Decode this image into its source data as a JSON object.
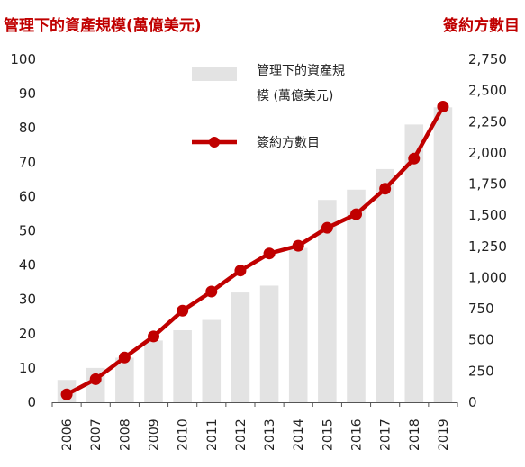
{
  "titles": {
    "left": "管理下的資產規模(萬億美元)",
    "right": "簽約方數目"
  },
  "colors": {
    "title": "#c00000",
    "line": "#c00000",
    "bar": "#e3e3e3"
  },
  "chart_data": {
    "type": "bar+line",
    "categories": [
      "2006",
      "2007",
      "2008",
      "2009",
      "2010",
      "2011",
      "2012",
      "2013",
      "2014",
      "2015",
      "2016",
      "2017",
      "2018",
      "2019"
    ],
    "series": [
      {
        "name": "管理下的資產規模 (萬億美元)",
        "type": "bar",
        "axis": "left",
        "values": [
          6.5,
          10,
          13,
          18,
          21,
          24,
          32,
          34,
          45,
          59,
          62,
          68,
          81,
          86
        ]
      },
      {
        "name": "簽約方數目",
        "type": "line",
        "axis": "right",
        "values": [
          63,
          185,
          359,
          528,
          734,
          888,
          1056,
          1193,
          1255,
          1399,
          1508,
          1712,
          1954,
          2371
        ]
      }
    ],
    "left_axis": {
      "ylim": [
        0,
        100
      ],
      "ticks": [
        "0",
        "10",
        "20",
        "30",
        "40",
        "50",
        "60",
        "70",
        "80",
        "90",
        "100"
      ]
    },
    "right_axis": {
      "ylim": [
        0,
        2750
      ],
      "ticks": [
        "0",
        "250",
        "500",
        "750",
        "1,000",
        "1,250",
        "1,500",
        "1,750",
        "2,000",
        "2,250",
        "2,500",
        "2,750"
      ]
    },
    "legend": {
      "position": "top-left",
      "bar_label_lines": [
        "管理下的資產規",
        "模 (萬億美元)"
      ],
      "line_label": "簽約方數目"
    },
    "grid": false
  }
}
